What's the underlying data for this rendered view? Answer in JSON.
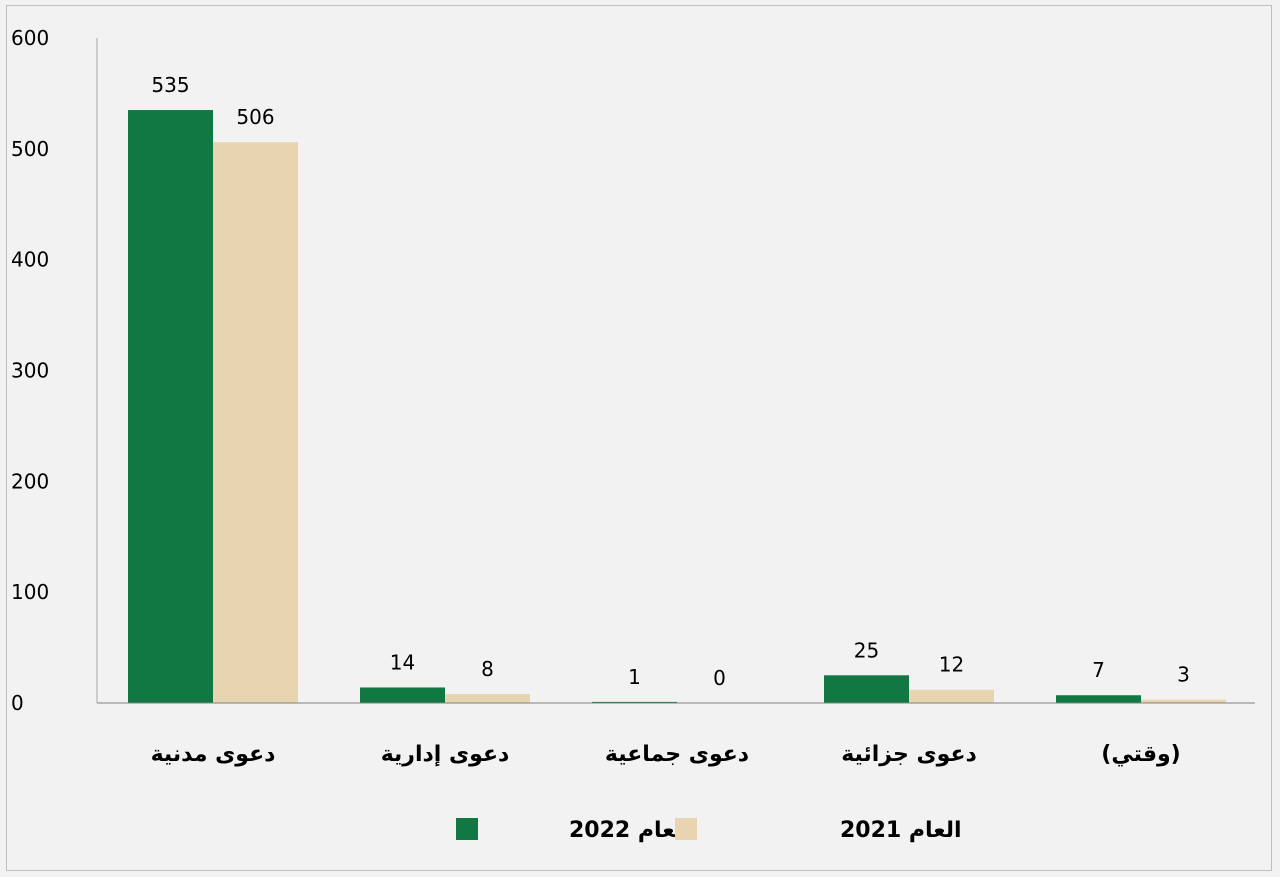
{
  "chart_data": {
    "type": "bar",
    "categories": [
      "دعوى مدنية",
      "دعوى إدارية",
      "دعوى جماعية",
      "دعوى جزائية",
      "(وقتي)"
    ],
    "series": [
      {
        "name": "العام 2022",
        "color": "#127843",
        "values": [
          535,
          14,
          1,
          25,
          7
        ]
      },
      {
        "name": "العام 2021",
        "color": "#e8d4b1",
        "values": [
          506,
          8,
          0,
          12,
          3
        ]
      }
    ],
    "ylim": [
      0,
      600
    ],
    "yticks": [
      0,
      100,
      200,
      300,
      400,
      500,
      600
    ],
    "legend_position": "bottom",
    "grid": false
  }
}
